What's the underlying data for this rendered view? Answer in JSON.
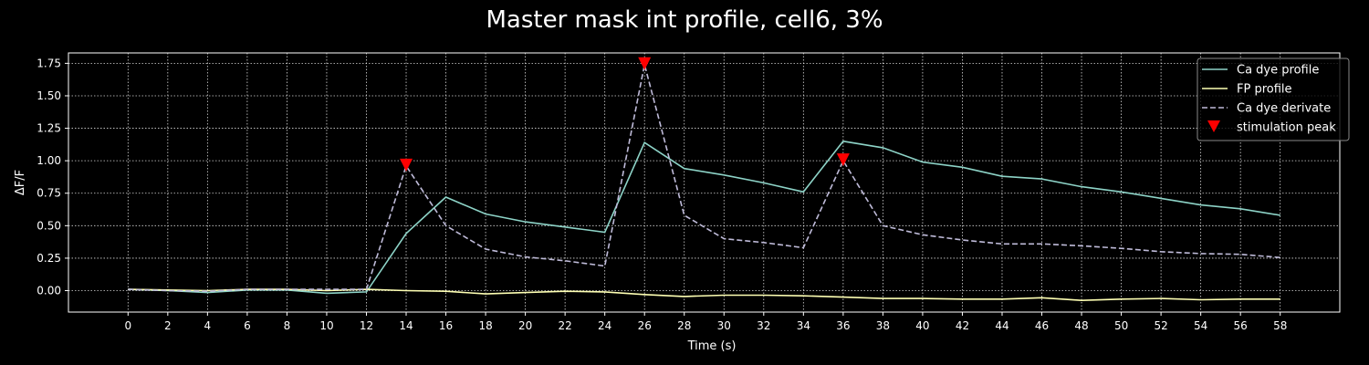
{
  "chart_data": {
    "type": "line",
    "title": "Master mask int profile, cell6, 3%",
    "xlabel": "Time (s)",
    "ylabel": "ΔF/F",
    "xlim": [
      -3,
      61
    ],
    "ylim": [
      -0.165,
      1.83
    ],
    "xticks": [
      0,
      2,
      4,
      6,
      8,
      10,
      12,
      14,
      16,
      18,
      20,
      22,
      24,
      26,
      28,
      30,
      32,
      34,
      36,
      38,
      40,
      42,
      44,
      46,
      48,
      50,
      52,
      54,
      56,
      58
    ],
    "yticks": [
      0.0,
      0.25,
      0.5,
      0.75,
      1.0,
      1.25,
      1.5,
      1.75
    ],
    "ytick_labels": [
      "0.00",
      "0.25",
      "0.50",
      "0.75",
      "1.00",
      "1.25",
      "1.50",
      "1.75"
    ],
    "grid": true,
    "legend_position": "top-right",
    "x": [
      0,
      2,
      4,
      6,
      8,
      10,
      12,
      14,
      16,
      18,
      20,
      22,
      24,
      26,
      28,
      30,
      32,
      34,
      36,
      38,
      40,
      42,
      44,
      46,
      48,
      50,
      52,
      54,
      56,
      58
    ],
    "series": [
      {
        "name": "Ca dye profile",
        "style": "solid",
        "color": "#8dd3c7",
        "values": [
          0.01,
          0.0,
          -0.015,
          0.005,
          0.005,
          -0.02,
          -0.01,
          0.44,
          0.72,
          0.59,
          0.53,
          0.49,
          0.45,
          1.14,
          0.94,
          0.89,
          0.83,
          0.76,
          1.15,
          1.1,
          0.99,
          0.95,
          0.88,
          0.86,
          0.8,
          0.76,
          0.71,
          0.66,
          0.63,
          0.58
        ]
      },
      {
        "name": "FP profile",
        "style": "solid",
        "color": "#feffb3",
        "values": [
          0.01,
          0.005,
          0.0,
          0.01,
          0.01,
          0.0,
          0.01,
          0.0,
          -0.005,
          -0.025,
          -0.015,
          -0.005,
          -0.01,
          -0.03,
          -0.045,
          -0.035,
          -0.035,
          -0.04,
          -0.05,
          -0.06,
          -0.06,
          -0.065,
          -0.065,
          -0.055,
          -0.075,
          -0.065,
          -0.06,
          -0.07,
          -0.065,
          -0.065
        ]
      },
      {
        "name": "Ca dye derivate",
        "style": "dashed",
        "color": "#bfbbd9",
        "values": [
          0.01,
          0.0,
          -0.005,
          0.01,
          0.01,
          0.01,
          0.01,
          0.96,
          0.5,
          0.32,
          0.26,
          0.23,
          0.19,
          1.74,
          0.58,
          0.4,
          0.37,
          0.33,
          1.0,
          0.5,
          0.43,
          0.39,
          0.36,
          0.36,
          0.345,
          0.325,
          0.3,
          0.285,
          0.28,
          0.255
        ]
      },
      {
        "name": "stimulation peak",
        "style": "marker",
        "color": "#ff0000",
        "points": [
          {
            "x": 14,
            "y": 0.96
          },
          {
            "x": 26,
            "y": 1.74
          },
          {
            "x": 36,
            "y": 1.0
          }
        ]
      }
    ]
  }
}
